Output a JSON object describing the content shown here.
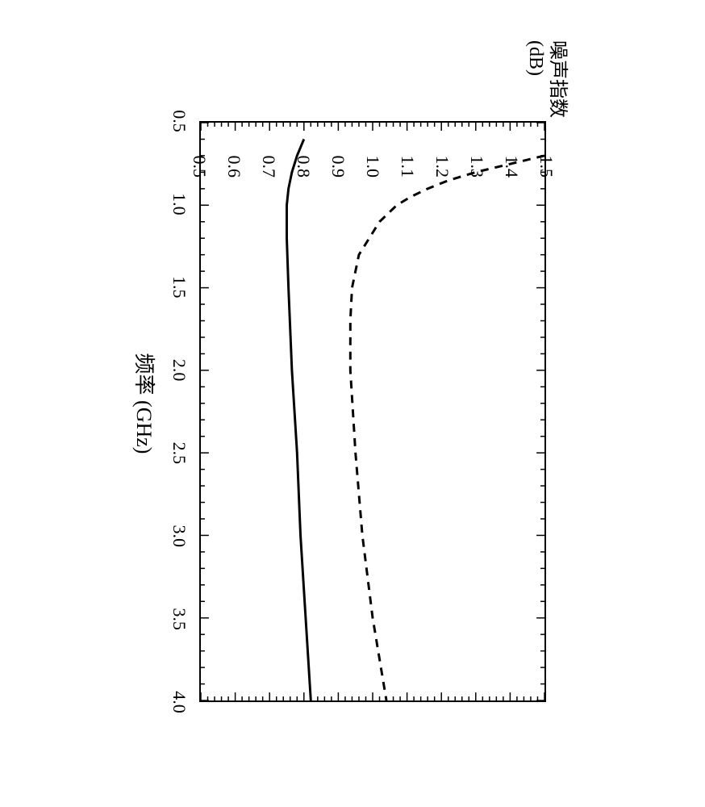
{
  "chart": {
    "type": "line",
    "y_axis_label_line1": "噪声指数",
    "y_axis_label_line2": "(dB)",
    "x_axis_label": "频率 (GHz)",
    "xlim": [
      0.5,
      4.0
    ],
    "ylim": [
      0.5,
      1.5
    ],
    "x_ticks": [
      0.5,
      1.0,
      1.5,
      2.0,
      2.5,
      3.0,
      3.5,
      4.0
    ],
    "y_ticks": [
      0.5,
      0.6,
      0.7,
      0.8,
      0.9,
      1.0,
      1.1,
      1.2,
      1.3,
      1.4,
      1.5
    ],
    "x_minor_step": 0.1,
    "y_minor_step": 0.02,
    "tick_length_major": 10,
    "tick_length_minor": 5,
    "series": [
      {
        "name": "dashed",
        "style": "dashed",
        "color": "#000000",
        "line_width": 3,
        "dash_pattern": "10,8",
        "points": [
          [
            0.7,
            1.5
          ],
          [
            0.75,
            1.4
          ],
          [
            0.8,
            1.3
          ],
          [
            0.85,
            1.22
          ],
          [
            0.9,
            1.16
          ],
          [
            0.95,
            1.11
          ],
          [
            1.0,
            1.07
          ],
          [
            1.1,
            1.02
          ],
          [
            1.2,
            0.99
          ],
          [
            1.3,
            0.96
          ],
          [
            1.4,
            0.95
          ],
          [
            1.5,
            0.94
          ],
          [
            1.7,
            0.935
          ],
          [
            2.0,
            0.935
          ],
          [
            2.5,
            0.95
          ],
          [
            3.0,
            0.97
          ],
          [
            3.5,
            1.0
          ],
          [
            4.0,
            1.04
          ]
        ]
      },
      {
        "name": "solid",
        "style": "solid",
        "color": "#000000",
        "line_width": 3,
        "points": [
          [
            0.6,
            0.8
          ],
          [
            0.7,
            0.78
          ],
          [
            0.8,
            0.765
          ],
          [
            0.9,
            0.755
          ],
          [
            1.0,
            0.75
          ],
          [
            1.2,
            0.75
          ],
          [
            1.5,
            0.755
          ],
          [
            2.0,
            0.765
          ],
          [
            2.5,
            0.78
          ],
          [
            3.0,
            0.79
          ],
          [
            3.5,
            0.805
          ],
          [
            4.0,
            0.82
          ]
        ]
      }
    ],
    "background_color": "#ffffff",
    "axis_color": "#000000",
    "label_fontsize": 24,
    "tick_fontsize": 22
  }
}
